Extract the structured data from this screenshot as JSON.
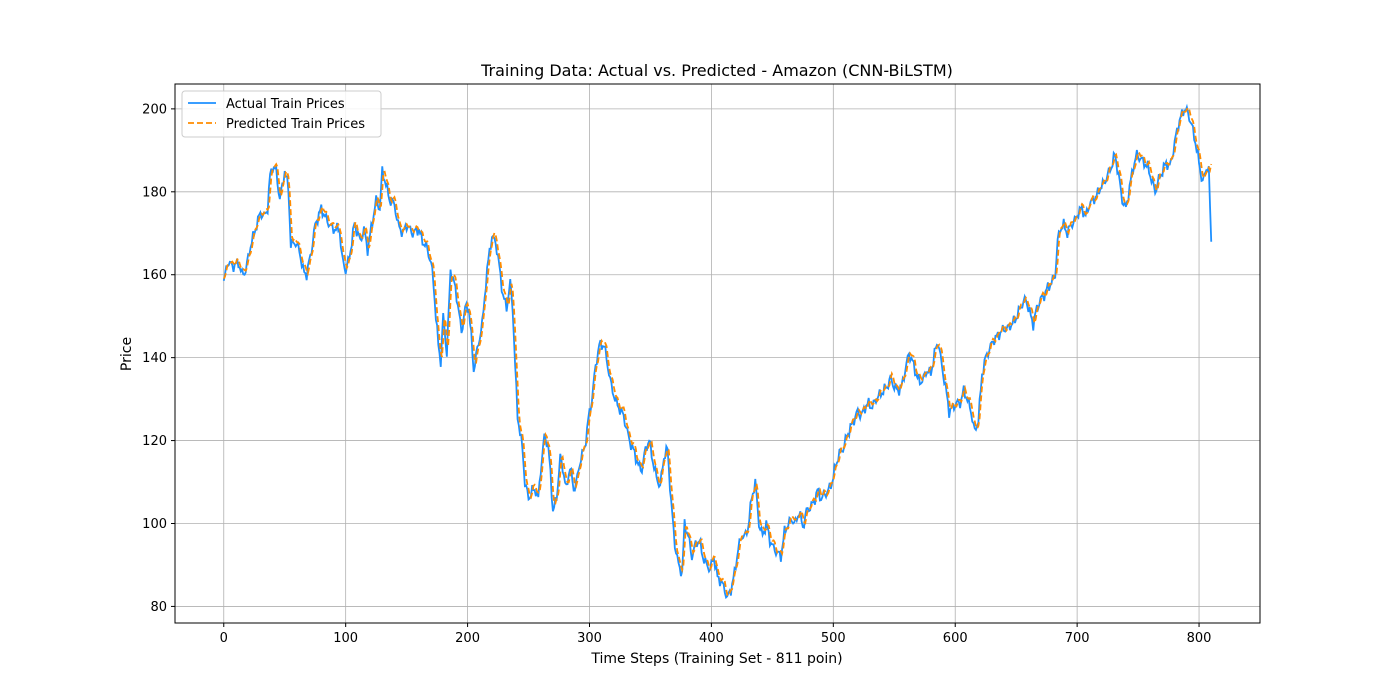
{
  "chart_data": {
    "type": "line",
    "title": "Training Data: Actual vs. Predicted - Amazon (CNN-BiLSTM)",
    "xlabel": "Time Steps (Training Set - 811 poin)",
    "ylabel": "Price",
    "xlim": [
      -40,
      850
    ],
    "ylim": [
      76,
      206
    ],
    "xticks": [
      0,
      100,
      200,
      300,
      400,
      500,
      600,
      700,
      800
    ],
    "yticks": [
      80,
      100,
      120,
      140,
      160,
      180,
      200
    ],
    "grid": true,
    "legend_position": "top-left",
    "anchors": [
      [
        0,
        158
      ],
      [
        3,
        163
      ],
      [
        8,
        162
      ],
      [
        12,
        163
      ],
      [
        15,
        160
      ],
      [
        18,
        161
      ],
      [
        22,
        167
      ],
      [
        25,
        170
      ],
      [
        30,
        175
      ],
      [
        33,
        174
      ],
      [
        36,
        176
      ],
      [
        38,
        184
      ],
      [
        40,
        186
      ],
      [
        43,
        185
      ],
      [
        46,
        178
      ],
      [
        50,
        185
      ],
      [
        53,
        181
      ],
      [
        55,
        167
      ],
      [
        58,
        168
      ],
      [
        62,
        166
      ],
      [
        65,
        161
      ],
      [
        68,
        160
      ],
      [
        72,
        166
      ],
      [
        75,
        172
      ],
      [
        80,
        176
      ],
      [
        83,
        174
      ],
      [
        87,
        172
      ],
      [
        90,
        171
      ],
      [
        95,
        171
      ],
      [
        97,
        164
      ],
      [
        100,
        161
      ],
      [
        103,
        164
      ],
      [
        107,
        172
      ],
      [
        110,
        170
      ],
      [
        112,
        168
      ],
      [
        115,
        171
      ],
      [
        118,
        166
      ],
      [
        122,
        173
      ],
      [
        125,
        178
      ],
      [
        128,
        176
      ],
      [
        130,
        185
      ],
      [
        133,
        182
      ],
      [
        136,
        178
      ],
      [
        140,
        177
      ],
      [
        143,
        172
      ],
      [
        147,
        170
      ],
      [
        150,
        172
      ],
      [
        155,
        170
      ],
      [
        160,
        171
      ],
      [
        163,
        168
      ],
      [
        166,
        167
      ],
      [
        170,
        163
      ],
      [
        172,
        158
      ],
      [
        174,
        150
      ],
      [
        176,
        143
      ],
      [
        178,
        139
      ],
      [
        180,
        150
      ],
      [
        183,
        141
      ],
      [
        186,
        161
      ],
      [
        189,
        158
      ],
      [
        192,
        153
      ],
      [
        195,
        146
      ],
      [
        198,
        152
      ],
      [
        201,
        152
      ],
      [
        203,
        145
      ],
      [
        205,
        137
      ],
      [
        208,
        142
      ],
      [
        212,
        148
      ],
      [
        215,
        158
      ],
      [
        218,
        166
      ],
      [
        220,
        169
      ],
      [
        223,
        168
      ],
      [
        226,
        162
      ],
      [
        229,
        155
      ],
      [
        232,
        152
      ],
      [
        235,
        158
      ],
      [
        237,
        152
      ],
      [
        239,
        138
      ],
      [
        241,
        126
      ],
      [
        243,
        122
      ],
      [
        245,
        118
      ],
      [
        247,
        110
      ],
      [
        250,
        106
      ],
      [
        253,
        108
      ],
      [
        256,
        108
      ],
      [
        258,
        106
      ],
      [
        260,
        113
      ],
      [
        263,
        121
      ],
      [
        266,
        119
      ],
      [
        268,
        112
      ],
      [
        270,
        103
      ],
      [
        273,
        106
      ],
      [
        276,
        116
      ],
      [
        279,
        112
      ],
      [
        281,
        108
      ],
      [
        284,
        114
      ],
      [
        287,
        108
      ],
      [
        290,
        111
      ],
      [
        293,
        116
      ],
      [
        296,
        118
      ],
      [
        299,
        125
      ],
      [
        302,
        130
      ],
      [
        305,
        138
      ],
      [
        308,
        143
      ],
      [
        312,
        143
      ],
      [
        315,
        138
      ],
      [
        318,
        133
      ],
      [
        321,
        130
      ],
      [
        324,
        128
      ],
      [
        328,
        126
      ],
      [
        331,
        122
      ],
      [
        334,
        119
      ],
      [
        337,
        117
      ],
      [
        340,
        114
      ],
      [
        343,
        113
      ],
      [
        346,
        118
      ],
      [
        349,
        120
      ],
      [
        352,
        115
      ],
      [
        355,
        111
      ],
      [
        358,
        109
      ],
      [
        361,
        116
      ],
      [
        364,
        118
      ],
      [
        367,
        105
      ],
      [
        370,
        95
      ],
      [
        373,
        90
      ],
      [
        376,
        88
      ],
      [
        378,
        100
      ],
      [
        381,
        97
      ],
      [
        384,
        92
      ],
      [
        387,
        95
      ],
      [
        390,
        96
      ],
      [
        393,
        92
      ],
      [
        396,
        90
      ],
      [
        399,
        89
      ],
      [
        402,
        92
      ],
      [
        405,
        87
      ],
      [
        408,
        86
      ],
      [
        411,
        84
      ],
      [
        413,
        82
      ],
      [
        416,
        84
      ],
      [
        419,
        88
      ],
      [
        422,
        94
      ],
      [
        425,
        97
      ],
      [
        428,
        97
      ],
      [
        430,
        99
      ],
      [
        433,
        106
      ],
      [
        436,
        110
      ],
      [
        439,
        100
      ],
      [
        442,
        97
      ],
      [
        445,
        100
      ],
      [
        448,
        96
      ],
      [
        451,
        94
      ],
      [
        454,
        93
      ],
      [
        457,
        92
      ],
      [
        460,
        98
      ],
      [
        463,
        100
      ],
      [
        466,
        101
      ],
      [
        469,
        100
      ],
      [
        472,
        103
      ],
      [
        475,
        99
      ],
      [
        478,
        103
      ],
      [
        481,
        104
      ],
      [
        484,
        105
      ],
      [
        487,
        108
      ],
      [
        490,
        106
      ],
      [
        493,
        107
      ],
      [
        496,
        108
      ],
      [
        499,
        110
      ],
      [
        502,
        114
      ],
      [
        505,
        117
      ],
      [
        508,
        118
      ],
      [
        511,
        121
      ],
      [
        514,
        123
      ],
      [
        517,
        125
      ],
      [
        520,
        127
      ],
      [
        523,
        126
      ],
      [
        526,
        128
      ],
      [
        529,
        129
      ],
      [
        532,
        128
      ],
      [
        535,
        130
      ],
      [
        538,
        131
      ],
      [
        541,
        132
      ],
      [
        544,
        133
      ],
      [
        547,
        135
      ],
      [
        550,
        133
      ],
      [
        553,
        132
      ],
      [
        556,
        133
      ],
      [
        559,
        137
      ],
      [
        562,
        141
      ],
      [
        565,
        139
      ],
      [
        568,
        136
      ],
      [
        571,
        134
      ],
      [
        574,
        135
      ],
      [
        577,
        137
      ],
      [
        580,
        136
      ],
      [
        583,
        141
      ],
      [
        586,
        144
      ],
      [
        589,
        138
      ],
      [
        592,
        133
      ],
      [
        595,
        127
      ],
      [
        598,
        128
      ],
      [
        601,
        129
      ],
      [
        604,
        129
      ],
      [
        607,
        132
      ],
      [
        610,
        130
      ],
      [
        613,
        127
      ],
      [
        616,
        122
      ],
      [
        619,
        125
      ],
      [
        622,
        136
      ],
      [
        625,
        140
      ],
      [
        628,
        142
      ],
      [
        631,
        144
      ],
      [
        634,
        145
      ],
      [
        637,
        146
      ],
      [
        640,
        147
      ],
      [
        643,
        147
      ],
      [
        646,
        148
      ],
      [
        649,
        149
      ],
      [
        652,
        151
      ],
      [
        655,
        153
      ],
      [
        658,
        154
      ],
      [
        661,
        151
      ],
      [
        664,
        148
      ],
      [
        667,
        152
      ],
      [
        670,
        154
      ],
      [
        673,
        155
      ],
      [
        676,
        157
      ],
      [
        679,
        158
      ],
      [
        682,
        160
      ],
      [
        684,
        168
      ],
      [
        686,
        171
      ],
      [
        689,
        172
      ],
      [
        692,
        170
      ],
      [
        695,
        172
      ],
      [
        698,
        173
      ],
      [
        701,
        175
      ],
      [
        704,
        176
      ],
      [
        707,
        174
      ],
      [
        710,
        177
      ],
      [
        713,
        178
      ],
      [
        716,
        179
      ],
      [
        719,
        181
      ],
      [
        722,
        182
      ],
      [
        725,
        184
      ],
      [
        728,
        186
      ],
      [
        731,
        189
      ],
      [
        734,
        184
      ],
      [
        737,
        178
      ],
      [
        740,
        176
      ],
      [
        743,
        181
      ],
      [
        746,
        186
      ],
      [
        749,
        189
      ],
      [
        752,
        188
      ],
      [
        755,
        187
      ],
      [
        758,
        186
      ],
      [
        761,
        183
      ],
      [
        764,
        180
      ],
      [
        767,
        183
      ],
      [
        770,
        185
      ],
      [
        773,
        187
      ],
      [
        776,
        186
      ],
      [
        779,
        190
      ],
      [
        782,
        195
      ],
      [
        785,
        198
      ],
      [
        788,
        200
      ],
      [
        791,
        199
      ],
      [
        794,
        196
      ],
      [
        797,
        192
      ],
      [
        800,
        187
      ],
      [
        803,
        182
      ],
      [
        806,
        186
      ],
      [
        808,
        185
      ],
      [
        810,
        168
      ]
    ],
    "series": [
      {
        "name": "Actual Train Prices",
        "color": "#1E90FF",
        "style": "solid"
      },
      {
        "name": "Predicted Train Prices",
        "color": "#FF8C00",
        "style": "dashed"
      }
    ]
  }
}
